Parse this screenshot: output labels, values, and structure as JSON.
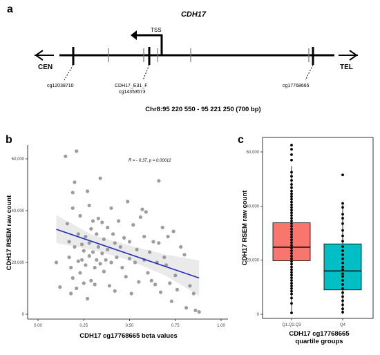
{
  "panels": {
    "a": "a",
    "b": "b",
    "c": "c"
  },
  "panel_a": {
    "gene": "CDH17",
    "tss_label": "TSS",
    "cen_label": "CEN",
    "tel_label": "TEL",
    "probe_left": "cg12038710",
    "probe_mid_line1": "CDH17_E31_F",
    "probe_mid_line2": "cg14353573",
    "probe_right": "cg17768665",
    "region": "Chr8:95 220 550 - 95 221 250 (700 bp)"
  },
  "chart_data": [
    {
      "panel": "b",
      "type": "scatter",
      "xlabel": "CDH17 cg17768665 beta values",
      "ylabel": "CDH17 RSEM raw count",
      "annotation": "R = - 0.37, p = 0.00012",
      "xlim": [
        0,
        1
      ],
      "ylim": [
        0,
        65000
      ],
      "x_ticks": [
        "0.00",
        "0.25",
        "0.50",
        "0.75",
        "1.00"
      ],
      "y_ticks": [
        "0",
        "20,000",
        "40,000",
        "60,000"
      ],
      "trend_line": {
        "x": [
          0.1,
          0.88
        ],
        "y": [
          32800,
          14000
        ],
        "color": "#1f2bb5"
      },
      "confidence_band": {
        "x": [
          0.1,
          0.3,
          0.5,
          0.7,
          0.88
        ],
        "lower": [
          27500,
          24800,
          20800,
          14800,
          7200
        ],
        "upper": [
          38300,
          30500,
          26600,
          23000,
          20800
        ]
      },
      "points": [
        [
          0.1,
          20000
        ],
        [
          0.12,
          10500
        ],
        [
          0.15,
          61000
        ],
        [
          0.16,
          35000
        ],
        [
          0.17,
          28000
        ],
        [
          0.17,
          22000
        ],
        [
          0.18,
          18000
        ],
        [
          0.18,
          8000
        ],
        [
          0.19,
          47000
        ],
        [
          0.19,
          41000
        ],
        [
          0.19,
          14000
        ],
        [
          0.2,
          51000
        ],
        [
          0.2,
          26000
        ],
        [
          0.21,
          63000
        ],
        [
          0.21,
          10000
        ],
        [
          0.22,
          31000
        ],
        [
          0.22,
          20500
        ],
        [
          0.23,
          38000
        ],
        [
          0.23,
          16000
        ],
        [
          0.24,
          27000
        ],
        [
          0.24,
          21000
        ],
        [
          0.25,
          24500
        ],
        [
          0.25,
          12000
        ],
        [
          0.26,
          30000
        ],
        [
          0.26,
          19000
        ],
        [
          0.27,
          47500
        ],
        [
          0.27,
          6000
        ],
        [
          0.28,
          42000
        ],
        [
          0.28,
          27500
        ],
        [
          0.28,
          22500
        ],
        [
          0.29,
          33000
        ],
        [
          0.29,
          13000
        ],
        [
          0.3,
          36000
        ],
        [
          0.3,
          24000
        ],
        [
          0.31,
          18000
        ],
        [
          0.31,
          11500
        ],
        [
          0.32,
          21000
        ],
        [
          0.32,
          31000
        ],
        [
          0.33,
          37000
        ],
        [
          0.33,
          26000
        ],
        [
          0.34,
          52500
        ],
        [
          0.34,
          19500
        ],
        [
          0.35,
          35500
        ],
        [
          0.35,
          23500
        ],
        [
          0.36,
          16500
        ],
        [
          0.36,
          29000
        ],
        [
          0.37,
          21000
        ],
        [
          0.38,
          33500
        ],
        [
          0.38,
          25000
        ],
        [
          0.39,
          11000
        ],
        [
          0.4,
          41000
        ],
        [
          0.4,
          20000
        ],
        [
          0.41,
          31000
        ],
        [
          0.42,
          27500
        ],
        [
          0.42,
          9000
        ],
        [
          0.43,
          22000
        ],
        [
          0.44,
          36000
        ],
        [
          0.45,
          26000
        ],
        [
          0.46,
          18000
        ],
        [
          0.47,
          29500
        ],
        [
          0.48,
          14500
        ],
        [
          0.49,
          43500
        ],
        [
          0.5,
          28000
        ],
        [
          0.5,
          21500
        ],
        [
          0.51,
          8000
        ],
        [
          0.52,
          34500
        ],
        [
          0.53,
          20000
        ],
        [
          0.54,
          25000
        ],
        [
          0.55,
          12500
        ],
        [
          0.56,
          37500
        ],
        [
          0.57,
          40500
        ],
        [
          0.58,
          30000
        ],
        [
          0.58,
          21000
        ],
        [
          0.59,
          39500
        ],
        [
          0.6,
          16000
        ],
        [
          0.61,
          24000
        ],
        [
          0.62,
          13000
        ],
        [
          0.63,
          28000
        ],
        [
          0.64,
          11500
        ],
        [
          0.65,
          20000
        ],
        [
          0.66,
          51500
        ],
        [
          0.66,
          27500
        ],
        [
          0.67,
          8500
        ],
        [
          0.68,
          33500
        ],
        [
          0.69,
          22000
        ],
        [
          0.7,
          19000
        ],
        [
          0.71,
          30000
        ],
        [
          0.72,
          12000
        ],
        [
          0.73,
          5000
        ],
        [
          0.74,
          32000
        ],
        [
          0.75,
          15000
        ],
        [
          0.76,
          9500
        ],
        [
          0.78,
          26000
        ],
        [
          0.8,
          23000
        ],
        [
          0.81,
          2500
        ],
        [
          0.83,
          11000
        ],
        [
          0.85,
          8000
        ],
        [
          0.86,
          1500
        ],
        [
          0.88,
          900
        ]
      ]
    },
    {
      "panel": "c",
      "type": "box",
      "xlabel_line1": "CDH17 cg17768665",
      "xlabel_line2": "quartile groups",
      "ylabel": "CDH17 RSEM raw count",
      "ylim": [
        0,
        65000
      ],
      "y_ticks": [
        "0",
        "20,000",
        "40,000",
        "60,000"
      ],
      "categories": [
        "Q1.Q2.Q3",
        "Q4"
      ],
      "boxes": [
        {
          "name": "Q1.Q2.Q3",
          "color": "#f8766d",
          "min": 0,
          "q1": 19800,
          "median": 24800,
          "q3": 33800,
          "max": 54800
        },
        {
          "name": "Q4",
          "color": "#00bfc4",
          "min": 0,
          "q1": 9000,
          "median": 16000,
          "q3": 26000,
          "max": 41500
        }
      ],
      "points": [
        {
          "group": 0,
          "values": [
            62500,
            61000,
            59000,
            57000,
            52500,
            51000,
            49500,
            48000,
            46800,
            45500,
            44500,
            43500,
            42500,
            41500,
            40500,
            39500,
            38500,
            37500,
            36500,
            35500,
            34500,
            33500,
            32500,
            31500,
            30500,
            29500,
            28500,
            27500,
            26500,
            25500,
            24500,
            23500,
            22500,
            21500,
            20500,
            19500,
            18500,
            17500,
            16500,
            15500,
            14500,
            13500,
            12500,
            11500,
            10500,
            9500,
            8500,
            7500,
            6000,
            4000,
            500
          ]
        },
        {
          "group": 1,
          "values": [
            51500,
            41000,
            39500,
            37000,
            35500,
            33500,
            31000,
            29000,
            27000,
            25000,
            23500,
            22000,
            20500,
            19000,
            17500,
            16500,
            15000,
            14000,
            12500,
            11000,
            9500,
            8000,
            6500,
            5000,
            3500,
            2000,
            800
          ]
        }
      ]
    }
  ]
}
